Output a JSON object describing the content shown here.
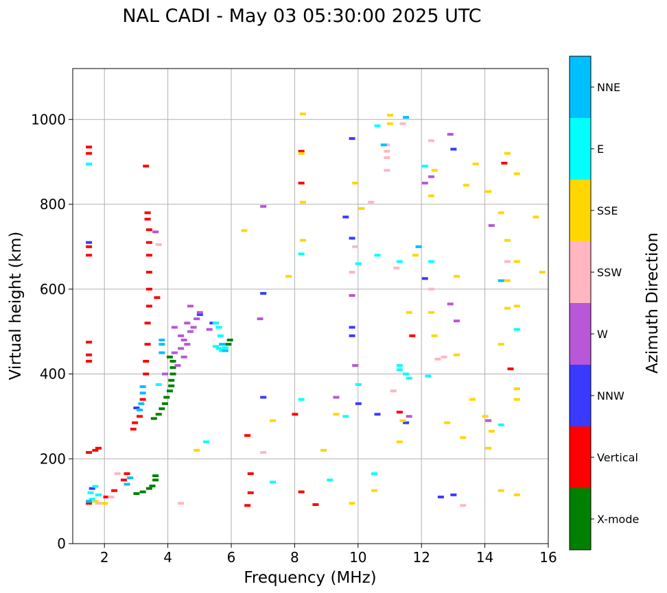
{
  "chart_data": {
    "type": "scatter",
    "title": "NAL CADI - May 03 05:30:00 2025 UTC",
    "xlabel": "Frequency (MHz)",
    "ylabel": "Virtual height (km)",
    "xlim": [
      1,
      16
    ],
    "ylim": [
      0,
      1120
    ],
    "xticks": [
      2,
      4,
      6,
      8,
      10,
      12,
      14,
      16
    ],
    "yticks": [
      0,
      200,
      400,
      600,
      800,
      1000
    ],
    "grid": true,
    "colorbar": {
      "label": "Azimuth Direction",
      "position": "right",
      "categories": [
        {
          "name": "X-mode",
          "color": "#008000"
        },
        {
          "name": "Vertical",
          "color": "#ff0000"
        },
        {
          "name": "NNW",
          "color": "#3a3aff"
        },
        {
          "name": "W",
          "color": "#b857d8"
        },
        {
          "name": "SSW",
          "color": "#ffb6c1"
        },
        {
          "name": "SSE",
          "color": "#ffd700"
        },
        {
          "name": "E",
          "color": "#00ffff"
        },
        {
          "name": "NNE",
          "color": "#00bfff"
        }
      ]
    },
    "series": [
      {
        "name": "X-mode",
        "points": [
          [
            3.0,
            118
          ],
          [
            3.2,
            122
          ],
          [
            3.4,
            130
          ],
          [
            3.5,
            136
          ],
          [
            3.6,
            150
          ],
          [
            3.6,
            160
          ],
          [
            3.55,
            295
          ],
          [
            3.7,
            305
          ],
          [
            3.8,
            318
          ],
          [
            3.9,
            330
          ],
          [
            3.95,
            345
          ],
          [
            4.05,
            360
          ],
          [
            4.1,
            372
          ],
          [
            4.1,
            385
          ],
          [
            4.15,
            400
          ],
          [
            4.15,
            415
          ],
          [
            4.15,
            430
          ],
          [
            4.05,
            440
          ],
          [
            5.9,
            470
          ],
          [
            5.95,
            480
          ]
        ]
      },
      {
        "name": "Vertical",
        "points": [
          [
            1.5,
            95
          ],
          [
            1.5,
            215
          ],
          [
            1.7,
            220
          ],
          [
            1.8,
            225
          ],
          [
            1.5,
            430
          ],
          [
            1.5,
            445
          ],
          [
            1.5,
            475
          ],
          [
            1.5,
            680
          ],
          [
            1.5,
            700
          ],
          [
            1.5,
            920
          ],
          [
            1.5,
            935
          ],
          [
            2.05,
            110
          ],
          [
            2.3,
            125
          ],
          [
            2.6,
            150
          ],
          [
            2.7,
            165
          ],
          [
            2.9,
            270
          ],
          [
            2.95,
            285
          ],
          [
            3.1,
            300
          ],
          [
            3.2,
            340
          ],
          [
            3.3,
            400
          ],
          [
            3.3,
            430
          ],
          [
            3.35,
            470
          ],
          [
            3.35,
            520
          ],
          [
            3.4,
            560
          ],
          [
            3.4,
            600
          ],
          [
            3.4,
            640
          ],
          [
            3.4,
            680
          ],
          [
            3.4,
            710
          ],
          [
            3.4,
            740
          ],
          [
            3.35,
            765
          ],
          [
            3.35,
            780
          ],
          [
            3.3,
            890
          ],
          [
            3.65,
            580
          ],
          [
            6.5,
            90
          ],
          [
            6.6,
            120
          ],
          [
            6.6,
            165
          ],
          [
            6.5,
            255
          ],
          [
            8.0,
            305
          ],
          [
            8.2,
            122
          ],
          [
            8.2,
            850
          ],
          [
            8.2,
            925
          ],
          [
            8.65,
            92
          ],
          [
            11.3,
            310
          ],
          [
            11.7,
            490
          ],
          [
            14.6,
            897
          ],
          [
            14.8,
            412
          ]
        ]
      },
      {
        "name": "NNW",
        "points": [
          [
            1.5,
            710
          ],
          [
            1.6,
            130
          ],
          [
            3.0,
            320
          ],
          [
            5.0,
            540
          ],
          [
            5.4,
            520
          ],
          [
            7.0,
            590
          ],
          [
            7.0,
            345
          ],
          [
            9.6,
            770
          ],
          [
            9.8,
            490
          ],
          [
            9.8,
            720
          ],
          [
            9.8,
            510
          ],
          [
            10.0,
            330
          ],
          [
            9.8,
            955
          ],
          [
            10.6,
            305
          ],
          [
            11.5,
            285
          ],
          [
            12.1,
            625
          ],
          [
            12.6,
            110
          ],
          [
            13.0,
            115
          ],
          [
            13.0,
            930
          ]
        ]
      },
      {
        "name": "W",
        "points": [
          [
            4.3,
            420
          ],
          [
            4.5,
            440
          ],
          [
            4.4,
            460
          ],
          [
            4.6,
            470
          ],
          [
            4.5,
            480
          ],
          [
            4.7,
            500
          ],
          [
            4.8,
            510
          ],
          [
            4.9,
            530
          ],
          [
            5.0,
            545
          ],
          [
            4.4,
            490
          ],
          [
            4.6,
            520
          ],
          [
            4.2,
            510
          ],
          [
            4.7,
            560
          ],
          [
            3.9,
            400
          ],
          [
            4.2,
            450
          ],
          [
            3.6,
            735
          ],
          [
            5.5,
            520
          ],
          [
            5.3,
            505
          ],
          [
            6.9,
            530
          ],
          [
            7.0,
            795
          ],
          [
            9.3,
            345
          ],
          [
            9.9,
            420
          ],
          [
            9.8,
            585
          ],
          [
            11.6,
            300
          ],
          [
            12.1,
            850
          ],
          [
            12.3,
            865
          ],
          [
            12.9,
            565
          ],
          [
            12.9,
            965
          ],
          [
            13.1,
            525
          ],
          [
            14.1,
            290
          ],
          [
            14.2,
            750
          ]
        ]
      },
      {
        "name": "SSW",
        "points": [
          [
            1.8,
            95
          ],
          [
            2.2,
            110
          ],
          [
            2.4,
            165
          ],
          [
            3.7,
            705
          ],
          [
            4.4,
            95
          ],
          [
            7.0,
            215
          ],
          [
            9.8,
            640
          ],
          [
            9.9,
            700
          ],
          [
            10.4,
            805
          ],
          [
            10.9,
            940
          ],
          [
            10.9,
            925
          ],
          [
            10.9,
            910
          ],
          [
            10.9,
            880
          ],
          [
            11.1,
            360
          ],
          [
            11.2,
            650
          ],
          [
            11.4,
            990
          ],
          [
            12.3,
            950
          ],
          [
            12.3,
            600
          ],
          [
            12.5,
            435
          ],
          [
            12.7,
            440
          ],
          [
            13.3,
            90
          ],
          [
            14.7,
            665
          ]
        ]
      },
      {
        "name": "SSE",
        "points": [
          [
            1.7,
            100
          ],
          [
            2.0,
            95
          ],
          [
            4.9,
            220
          ],
          [
            6.4,
            738
          ],
          [
            7.3,
            290
          ],
          [
            7.8,
            630
          ],
          [
            8.2,
            920
          ],
          [
            8.25,
            1013
          ],
          [
            8.25,
            805
          ],
          [
            8.25,
            715
          ],
          [
            8.9,
            220
          ],
          [
            9.3,
            305
          ],
          [
            9.8,
            95
          ],
          [
            9.9,
            850
          ],
          [
            10.1,
            790
          ],
          [
            10.5,
            125
          ],
          [
            11.0,
            1010
          ],
          [
            11.0,
            990
          ],
          [
            11.3,
            240
          ],
          [
            11.4,
            290
          ],
          [
            11.6,
            545
          ],
          [
            11.8,
            680
          ],
          [
            12.3,
            545
          ],
          [
            12.3,
            820
          ],
          [
            12.4,
            880
          ],
          [
            12.4,
            490
          ],
          [
            12.8,
            285
          ],
          [
            13.1,
            445
          ],
          [
            13.1,
            630
          ],
          [
            13.3,
            250
          ],
          [
            13.4,
            845
          ],
          [
            13.6,
            340
          ],
          [
            13.7,
            895
          ],
          [
            14.0,
            300
          ],
          [
            14.1,
            225
          ],
          [
            14.1,
            830
          ],
          [
            14.2,
            265
          ],
          [
            14.5,
            125
          ],
          [
            14.5,
            470
          ],
          [
            14.5,
            780
          ],
          [
            14.7,
            920
          ],
          [
            14.7,
            555
          ],
          [
            14.7,
            715
          ],
          [
            14.7,
            620
          ],
          [
            15.0,
            665
          ],
          [
            15.0,
            560
          ],
          [
            15.0,
            365
          ],
          [
            15.0,
            340
          ],
          [
            15.0,
            872
          ],
          [
            15.0,
            115
          ],
          [
            15.6,
            770
          ],
          [
            15.8,
            640
          ]
        ]
      },
      {
        "name": "E",
        "points": [
          [
            1.55,
            120
          ],
          [
            1.6,
            105
          ],
          [
            1.7,
            135
          ],
          [
            1.5,
            895
          ],
          [
            1.8,
            115
          ],
          [
            3.7,
            375
          ],
          [
            5.5,
            465
          ],
          [
            5.6,
            460
          ],
          [
            5.7,
            455
          ],
          [
            5.8,
            462
          ],
          [
            5.65,
            490
          ],
          [
            5.6,
            510
          ],
          [
            5.5,
            520
          ],
          [
            5.2,
            240
          ],
          [
            7.3,
            145
          ],
          [
            8.2,
            340
          ],
          [
            8.2,
            683
          ],
          [
            9.1,
            150
          ],
          [
            9.6,
            300
          ],
          [
            10.0,
            375
          ],
          [
            10.0,
            660
          ],
          [
            10.5,
            165
          ],
          [
            10.6,
            680
          ],
          [
            10.6,
            985
          ],
          [
            11.3,
            420
          ],
          [
            11.3,
            410
          ],
          [
            11.3,
            665
          ],
          [
            11.5,
            400
          ],
          [
            11.6,
            390
          ],
          [
            12.1,
            890
          ],
          [
            12.2,
            395
          ],
          [
            12.3,
            665
          ],
          [
            14.5,
            280
          ],
          [
            15.0,
            505
          ]
        ]
      },
      {
        "name": "NNE",
        "points": [
          [
            1.5,
            100
          ],
          [
            2.7,
            140
          ],
          [
            2.8,
            155
          ],
          [
            3.1,
            315
          ],
          [
            3.15,
            330
          ],
          [
            3.2,
            355
          ],
          [
            3.2,
            370
          ],
          [
            3.8,
            450
          ],
          [
            3.8,
            470
          ],
          [
            3.8,
            480
          ],
          [
            5.7,
            470
          ],
          [
            5.8,
            455
          ],
          [
            10.8,
            940
          ],
          [
            11.5,
            1005
          ],
          [
            11.9,
            700
          ],
          [
            14.5,
            620
          ]
        ]
      }
    ]
  }
}
